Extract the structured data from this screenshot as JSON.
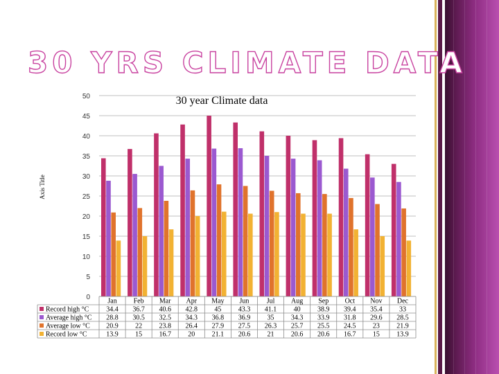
{
  "slide": {
    "title": "30 YRS CLIMATE DATA"
  },
  "theme": {
    "accent": "#c8419f",
    "band_dark": "#3a0f30",
    "band_light": "#b94fb0",
    "gold": "#d9b25a"
  },
  "chart_data": {
    "type": "bar",
    "title": "30 year Climate data",
    "ylabel": "Axis Title",
    "xlabel": "",
    "ylim": [
      0,
      50
    ],
    "yticks": [
      0,
      5,
      10,
      15,
      20,
      25,
      30,
      35,
      40,
      45,
      50
    ],
    "grid": true,
    "legend": "data-table-left",
    "categories": [
      "Jan",
      "Feb",
      "Mar",
      "Apr",
      "May",
      "Jun",
      "Jul",
      "Aug",
      "Sep",
      "Oct",
      "Nov",
      "Dec"
    ],
    "series": [
      {
        "name": "Record high °C",
        "color": "#c0306a",
        "values": [
          34.4,
          36.7,
          40.6,
          42.8,
          45,
          43.3,
          41.1,
          40,
          38.9,
          39.4,
          35.4,
          33
        ],
        "labels": [
          "34.4",
          "36.7",
          "40.6",
          "42.8",
          "45",
          "43.3",
          "41.1",
          "40",
          "38.9",
          "39.4",
          "35.4",
          "33"
        ]
      },
      {
        "name": "Average high °C",
        "color": "#9b59d0",
        "values": [
          28.8,
          30.5,
          32.5,
          34.3,
          36.8,
          36.9,
          35,
          34.3,
          33.9,
          31.8,
          29.6,
          28.5
        ],
        "labels": [
          "28.8",
          "30.5",
          "32.5",
          "34.3",
          "36.8",
          "36.9",
          "35",
          "34.3",
          "33.9",
          "31.8",
          "29.6",
          "28.5"
        ]
      },
      {
        "name": "Average low °C",
        "color": "#e0732c",
        "values": [
          20.9,
          22,
          23.8,
          26.4,
          27.9,
          27.5,
          26.3,
          25.7,
          25.5,
          24.5,
          23,
          21.9
        ],
        "labels": [
          "20.9",
          "22",
          "23.8",
          "26.4",
          "27.9",
          "27.5",
          "26.3",
          "25.7",
          "25.5",
          "24.5",
          "23",
          "21.9"
        ]
      },
      {
        "name": "Record low °C",
        "color": "#f2b233",
        "values": [
          13.9,
          15,
          16.7,
          20,
          21.1,
          20.6,
          21,
          20.6,
          20.6,
          16.7,
          15,
          13.9
        ],
        "labels": [
          "13.9",
          "15",
          "16.7",
          "20",
          "21.1",
          "20.6",
          "21",
          "20.6",
          "20.6",
          "16.7",
          "15",
          "13.9"
        ]
      }
    ]
  }
}
